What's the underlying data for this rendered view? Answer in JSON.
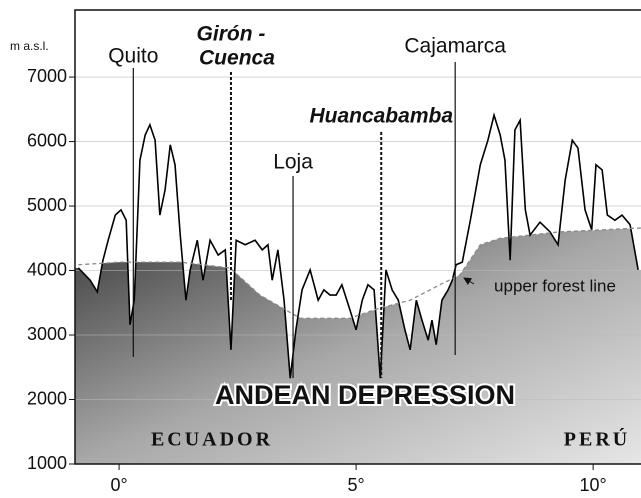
{
  "chart_data": {
    "type": "line",
    "ylabel": "m a.s.l.",
    "xlim": [
      -0.93,
      11.01
    ],
    "ylim": [
      1000,
      8040
    ],
    "yticks": [
      1000,
      2000,
      3000,
      4000,
      5000,
      6000,
      7000
    ],
    "xticks": [
      {
        "value": 0,
        "label": "0°"
      },
      {
        "value": 5,
        "label": "5°"
      },
      {
        "value": 10,
        "label": "10°"
      }
    ],
    "grid": true,
    "series": [
      {
        "color": "#000000",
        "line_style": "solid",
        "x": [
          -0.86,
          -0.61,
          -0.46,
          -0.34,
          -0.23,
          -0.08,
          0.04,
          0.15,
          0.23,
          0.32,
          0.44,
          0.55,
          0.65,
          0.76,
          0.86,
          0.97,
          1.08,
          1.18,
          1.29,
          1.41,
          1.5,
          1.65,
          1.77,
          1.92,
          2.09,
          2.24,
          2.36,
          2.47,
          2.66,
          2.87,
          3.02,
          3.14,
          3.23,
          3.35,
          3.48,
          3.61,
          3.73,
          3.86,
          4.03,
          4.2,
          4.32,
          4.45,
          4.58,
          4.7,
          4.87,
          5.0,
          5.13,
          5.25,
          5.38,
          5.51,
          5.63,
          5.76,
          5.89,
          6.03,
          6.14,
          6.27,
          6.39,
          6.52,
          6.6,
          6.69,
          6.81,
          6.94,
          7.03,
          7.11,
          7.24,
          7.41,
          7.62,
          7.78,
          7.91,
          8.04,
          8.14,
          8.25,
          8.35,
          8.46,
          8.57,
          8.67,
          8.88,
          9.09,
          9.26,
          9.41,
          9.56,
          9.68,
          9.83,
          9.97,
          10.06,
          10.19,
          10.3,
          10.46,
          10.61,
          10.78,
          10.95
        ],
        "values": [
          4040,
          3850,
          3670,
          4160,
          4470,
          4860,
          4940,
          4780,
          3160,
          3540,
          5710,
          6100,
          6260,
          6020,
          4860,
          5250,
          5950,
          5640,
          4550,
          3540,
          4010,
          4470,
          3850,
          4470,
          4240,
          4320,
          2770,
          4470,
          4400,
          4470,
          4320,
          4400,
          3850,
          4320,
          3540,
          2330,
          3080,
          3700,
          4010,
          3540,
          3700,
          3620,
          3620,
          3780,
          3390,
          3080,
          3540,
          3780,
          3700,
          2330,
          4010,
          3700,
          3540,
          3080,
          2770,
          3540,
          3230,
          2920,
          3230,
          2850,
          3540,
          3700,
          3850,
          4090,
          4130,
          4780,
          5640,
          6020,
          6410,
          6100,
          5710,
          4160,
          6180,
          6330,
          4940,
          4550,
          4750,
          4600,
          4400,
          5400,
          6020,
          5900,
          4940,
          4630,
          5640,
          5560,
          4860,
          4780,
          4860,
          4710,
          4010
        ]
      },
      {
        "name": "upper forest line",
        "color": "#8a8a8a",
        "line_style": "dashed",
        "x": [
          -0.86,
          0.02,
          1.29,
          2.34,
          2.97,
          3.82,
          4.87,
          5.51,
          6.14,
          6.77,
          7.19,
          7.62,
          8.04,
          9.3,
          11.01
        ],
        "values": [
          4090,
          4130,
          4130,
          4040,
          3620,
          3260,
          3260,
          3420,
          3540,
          3780,
          3930,
          4400,
          4500,
          4600,
          4660
        ]
      }
    ],
    "annotations": [
      {
        "lines": [
          "Quito"
        ],
        "x": 0.3,
        "style": "plain"
      },
      {
        "lines": [
          "Girón -",
          "Cuenca"
        ],
        "x": 2.36,
        "style": "bold-italic"
      },
      {
        "lines": [
          "Loja"
        ],
        "x": 3.67,
        "style": "plain"
      },
      {
        "lines": [
          "Huancabamba"
        ],
        "x": 5.53,
        "style": "bold-italic"
      },
      {
        "lines": [
          "Cajamarca"
        ],
        "x": 7.09,
        "style": "plain"
      }
    ],
    "region_label": "ANDEAN DEPRESSION",
    "countries": [
      "ECUADOR",
      "PERÚ"
    ]
  }
}
